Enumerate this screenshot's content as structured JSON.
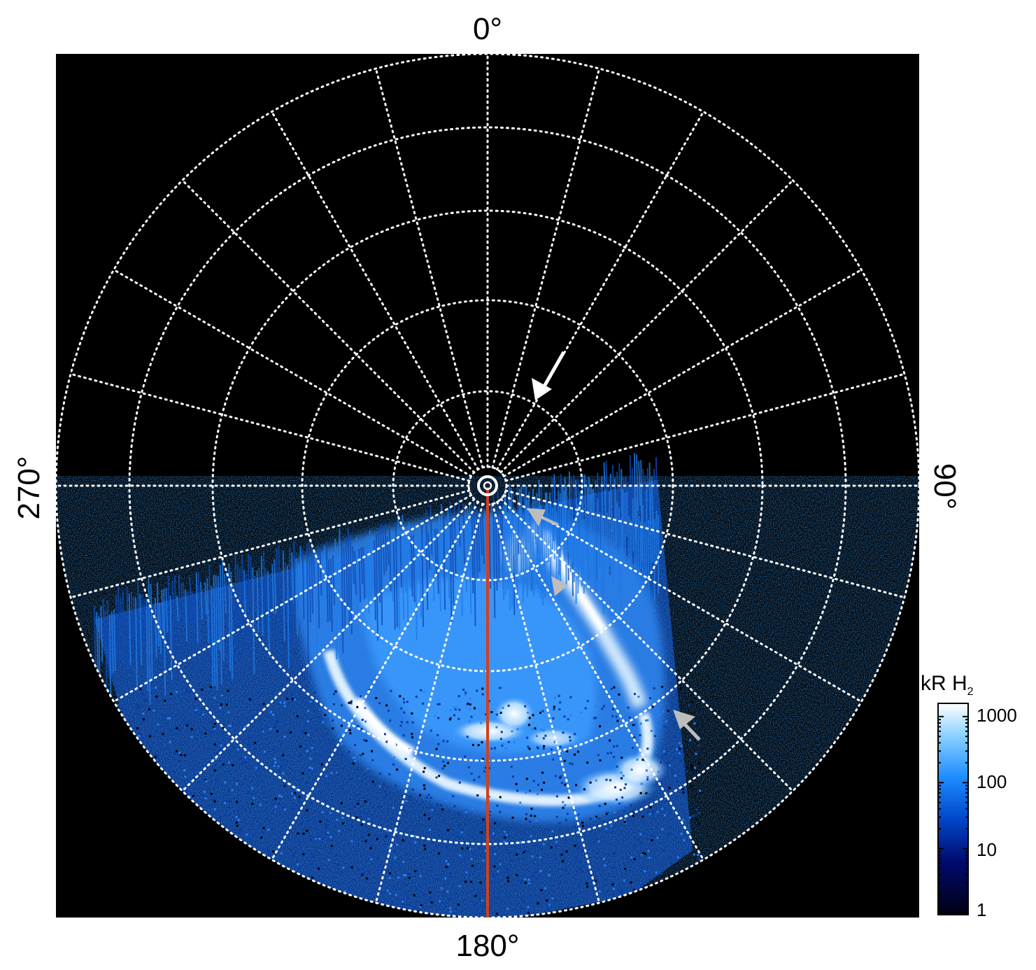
{
  "polar_labels": {
    "top": "0°",
    "right": "90°",
    "bottom": "180°",
    "left": "270°"
  },
  "colorbar": {
    "title_main": "kR H",
    "title_sub": "2",
    "ticks": [
      "1000",
      "100",
      "10",
      "1"
    ],
    "colors": [
      "#000010",
      "#000a6e",
      "#0046c8",
      "#1e8cff",
      "#8cd2ff",
      "#ffffff"
    ]
  },
  "colors": {
    "background": "#000000",
    "grid": "#ffffff",
    "meridian_line": "#d0401e",
    "aurora_core": "#ffffff",
    "aurora_mid": "#3c9cff",
    "aurora_low": "#0a3c9c",
    "arrow_white": "#ffffff",
    "arrow_grey": "#bdbdbd"
  },
  "arrows": [
    {
      "name": "white-arrow",
      "color": "#ffffff"
    },
    {
      "name": "grey-arrow-upper",
      "color": "#bdbdbd"
    },
    {
      "name": "grey-arrow-middle",
      "color": "#bdbdbd"
    },
    {
      "name": "grey-arrow-lower",
      "color": "#bdbdbd"
    }
  ]
}
